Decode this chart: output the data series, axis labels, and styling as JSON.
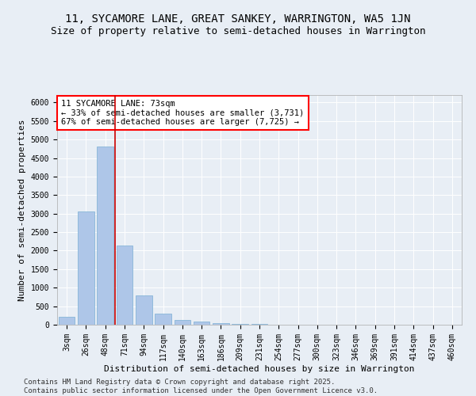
{
  "title1": "11, SYCAMORE LANE, GREAT SANKEY, WARRINGTON, WA5 1JN",
  "title2": "Size of property relative to semi-detached houses in Warrington",
  "xlabel": "Distribution of semi-detached houses by size in Warrington",
  "ylabel": "Number of semi-detached properties",
  "categories": [
    "3sqm",
    "26sqm",
    "48sqm",
    "71sqm",
    "94sqm",
    "117sqm",
    "140sqm",
    "163sqm",
    "186sqm",
    "209sqm",
    "231sqm",
    "254sqm",
    "277sqm",
    "300sqm",
    "323sqm",
    "346sqm",
    "369sqm",
    "391sqm",
    "414sqm",
    "437sqm",
    "460sqm"
  ],
  "values": [
    220,
    3050,
    4800,
    2130,
    800,
    310,
    120,
    80,
    50,
    30,
    20,
    5,
    3,
    2,
    1,
    1,
    0,
    0,
    0,
    0,
    0
  ],
  "bar_color": "#aec6e8",
  "bar_edge_color": "#7aafd4",
  "vline_color": "#cc0000",
  "vline_pos": 2.5,
  "annotation_box_text": "11 SYCAMORE LANE: 73sqm\n← 33% of semi-detached houses are smaller (3,731)\n67% of semi-detached houses are larger (7,725) →",
  "ylim": [
    0,
    6200
  ],
  "yticks": [
    0,
    500,
    1000,
    1500,
    2000,
    2500,
    3000,
    3500,
    4000,
    4500,
    5000,
    5500,
    6000
  ],
  "bg_color": "#e8eef5",
  "plot_bg_color": "#e8eef5",
  "footer": "Contains HM Land Registry data © Crown copyright and database right 2025.\nContains public sector information licensed under the Open Government Licence v3.0.",
  "title1_fontsize": 10,
  "title2_fontsize": 9,
  "xlabel_fontsize": 8,
  "ylabel_fontsize": 8,
  "tick_fontsize": 7,
  "annotation_fontsize": 7.5,
  "footer_fontsize": 6.5
}
